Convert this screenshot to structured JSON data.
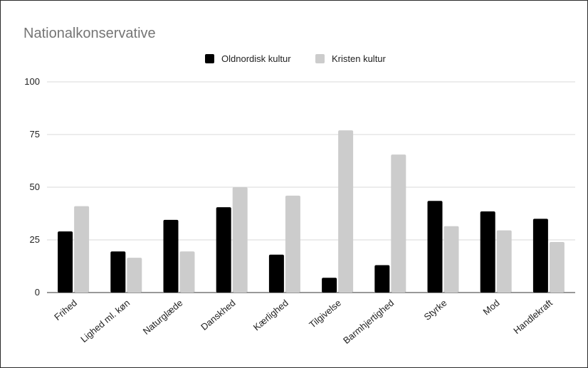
{
  "chart_data": {
    "type": "bar",
    "title": "Nationalkonservative",
    "xlabel": "",
    "ylabel": "",
    "ylim": [
      0,
      100
    ],
    "yticks": [
      0,
      25,
      50,
      75,
      100
    ],
    "grid": true,
    "legend_position": "top",
    "categories": [
      "Frihed",
      "Lighed ml. køn",
      "Naturglæde",
      "Danskhed",
      "Kærlighed",
      "Tilgivelse",
      "Barmhjertighed",
      "Styrke",
      "Mod",
      "Handlekraft"
    ],
    "series": [
      {
        "name": "Oldnordisk kultur",
        "color": "#000000",
        "values": [
          29,
          19.5,
          34.5,
          40.5,
          18,
          7,
          13,
          43.5,
          38.5,
          35
        ]
      },
      {
        "name": "Kristen kultur",
        "color": "#cccccc",
        "values": [
          41,
          16.5,
          19.5,
          50,
          46,
          77,
          65.5,
          31.5,
          29.5,
          24
        ]
      }
    ]
  }
}
